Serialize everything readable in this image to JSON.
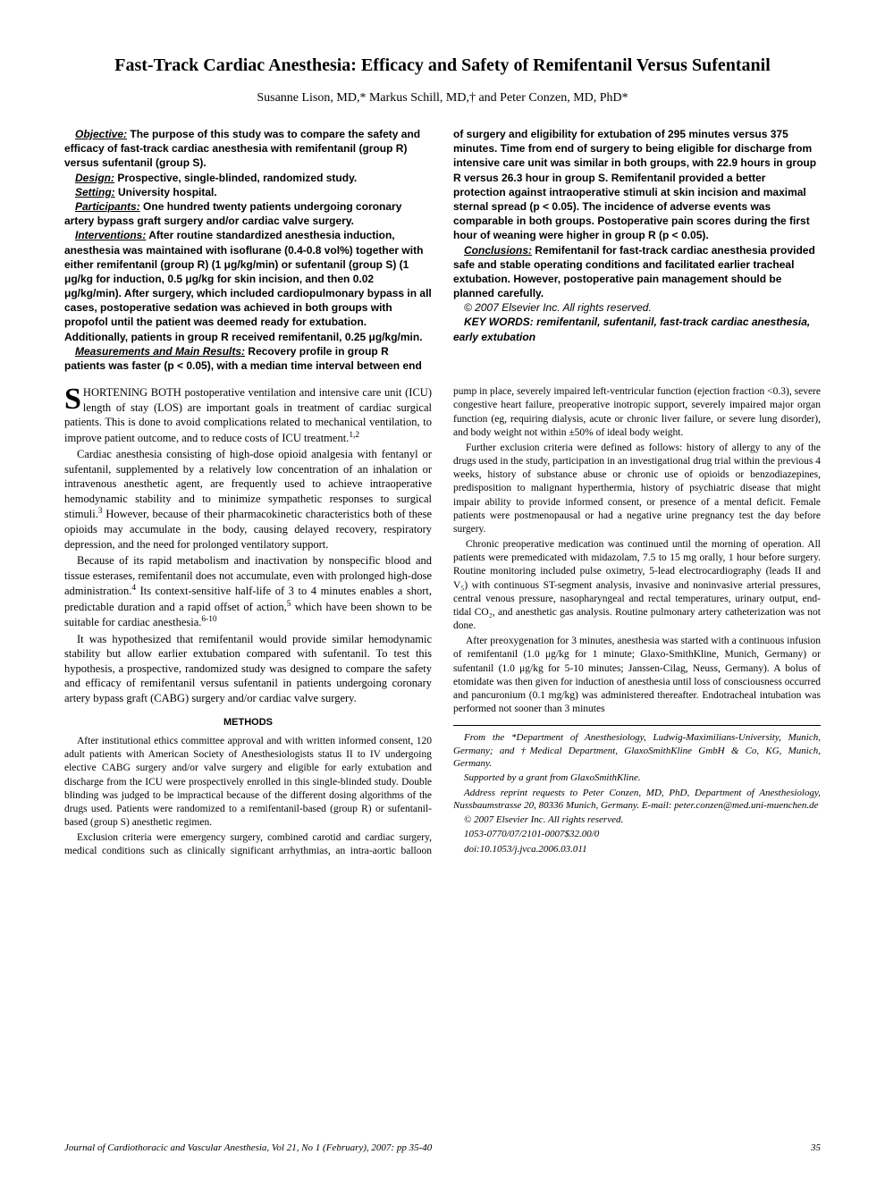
{
  "title": "Fast-Track Cardiac Anesthesia: Efficacy and Safety of Remifentanil Versus Sufentanil",
  "authors": "Susanne Lison, MD,* Markus Schill, MD,† and Peter Conzen, MD, PhD*",
  "abstract": {
    "objective_label": "Objective:",
    "objective": "The purpose of this study was to compare the safety and efficacy of fast-track cardiac anesthesia with remifentanil (group R) versus sufentanil (group S).",
    "design_label": "Design:",
    "design": "Prospective, single-blinded, randomized study.",
    "setting_label": "Setting:",
    "setting": "University hospital.",
    "participants_label": "Participants:",
    "participants": "One hundred twenty patients undergoing coronary artery bypass graft surgery and/or cardiac valve surgery.",
    "interventions_label": "Interventions:",
    "interventions": "After routine standardized anesthesia induction, anesthesia was maintained with isoflurane (0.4-0.8 vol%) together with either remifentanil (group R) (1 μg/kg/min) or sufentanil (group S) (1 μg/kg for induction, 0.5 μg/kg for skin incision, and then 0.02 μg/kg/min). After surgery, which included cardiopulmonary bypass in all cases, postoperative sedation was achieved in both groups with propofol until the patient was deemed ready for extubation. Additionally, patients in group R received remifentanil, 0.25 μg/kg/min.",
    "measurements_label": "Measurements and Main Results:",
    "measurements": "Recovery profile in group R patients was faster (p < 0.05), with a median time interval between end of surgery and eligibility for extubation of 295 minutes versus 375 minutes. Time from end of surgery to being eligible for discharge from intensive care unit was similar in both groups, with 22.9 hours in group R versus 26.3 hour in group S. Remifentanil provided a better protection against intraoperative stimuli at skin incision and maximal sternal spread (p < 0.05). The incidence of adverse events was comparable in both groups. Postoperative pain scores during the first hour of weaning were higher in group R (p < 0.05).",
    "conclusions_label": "Conclusions:",
    "conclusions": "Remifentanil for fast-track cardiac anesthesia provided safe and stable operating conditions and facilitated earlier tracheal extubation. However, postoperative pain management should be planned carefully.",
    "copyright": "© 2007 Elsevier Inc. All rights reserved.",
    "keywords": "KEY WORDS: remifentanil, sufentanil, fast-track cardiac anesthesia, early extubation"
  },
  "body": {
    "p1_dropcap": "S",
    "p1": "HORTENING BOTH postoperative ventilation and intensive care unit (ICU) length of stay (LOS) are important goals in treatment of cardiac surgical patients. This is done to avoid complications related to mechanical ventilation, to improve patient outcome, and to reduce costs of ICU treatment.",
    "p1_ref": "1,2",
    "p2": "Cardiac anesthesia consisting of high-dose opioid analgesia with fentanyl or sufentanil, supplemented by a relatively low concentration of an inhalation or intravenous anesthetic agent, are frequently used to achieve intraoperative hemodynamic stability and to minimize sympathetic responses to surgical stimuli.",
    "p2_ref": "3",
    "p2b": " However, because of their pharmacokinetic characteristics both of these opioids may accumulate in the body, causing delayed recovery, respiratory depression, and the need for prolonged ventilatory support.",
    "p3": "Because of its rapid metabolism and inactivation by nonspecific blood and tissue esterases, remifentanil does not accumulate, even with prolonged high-dose administration.",
    "p3_ref": "4",
    "p3b": " Its context-sensitive half-life of 3 to 4 minutes enables a short, predictable duration and a rapid offset of action,",
    "p3_ref2": "5",
    "p3c": " which have been shown to be suitable for cardiac anesthesia.",
    "p3_ref3": "6-10",
    "p4": "It was hypothesized that remifentanil would provide similar hemodynamic stability but allow earlier extubation compared with sufentanil. To test this hypothesis, a prospective, randomized study was designed to compare the safety and efficacy of remifentanil versus sufentanil in patients undergoing coronary artery bypass graft (CABG) surgery and/or cardiac valve surgery.",
    "methods_head": "METHODS",
    "m1": "After institutional ethics committee approval and with written informed consent, 120 adult patients with American Society of Anesthesiologists status II to IV undergoing elective CABG surgery and/or valve surgery and eligible for early extubation and discharge from the ICU were prospectively enrolled in this single-blinded study. Double blinding was judged to be impractical because of the different dosing algorithms of the drugs used. Patients were randomized to a remifentanil-based (group R) or sufentanil-based (group S) anesthetic regimen.",
    "m2": "Exclusion criteria were emergency surgery, combined carotid and cardiac surgery, medical conditions such as clinically significant arrhythmias, an intra-aortic balloon pump in place, severely impaired left-ventricular function (ejection fraction <0.3), severe congestive heart failure, preoperative inotropic support, severely impaired major organ function (eg, requiring dialysis, acute or chronic liver failure, or severe lung disorder), and body weight not within ±50% of ideal body weight.",
    "m3": "Further exclusion criteria were defined as follows: history of allergy to any of the drugs used in the study, participation in an investigational drug trial within the previous 4 weeks, history of substance abuse or chronic use of opioids or benzodiazepines, predisposition to malignant hyperthermia, history of psychiatric disease that might impair ability to provide informed consent, or presence of a mental deficit. Female patients were postmenopausal or had a negative urine pregnancy test the day before surgery.",
    "m4": "Chronic preoperative medication was continued until the morning of operation. All patients were premedicated with midazolam, 7.5 to 15 mg orally, 1 hour before surgery. Routine monitoring included pulse oximetry, 5-lead electrocardiography (leads II and V₅) with continuous ST-segment analysis, invasive and noninvasive arterial pressures, central venous pressure, nasopharyngeal and rectal temperatures, urinary output, end-tidal CO₂, and anesthetic gas analysis. Routine pulmonary artery catheterization was not done.",
    "m5": "After preoxygenation for 3 minutes, anesthesia was started with a continuous infusion of remifentanil (1.0 μg/kg for 1 minute; Glaxo-SmithKline, Munich, Germany) or sufentanil (1.0 μg/kg for 5-10 minutes; Janssen-Cilag, Neuss, Germany). A bolus of etomidate was then given for induction of anesthesia until loss of consciousness occurred and pancuronium (0.1 mg/kg) was administered thereafter. Endotracheal intubation was performed not sooner than 3 minutes"
  },
  "affil": {
    "from": "From the *Department of Anesthesiology, Ludwig-Maximilians-University, Munich, Germany; and †Medical Department, GlaxoSmithKline GmbH & Co, KG, Munich, Germany.",
    "support": "Supported by a grant from GlaxoSmithKline.",
    "reprint": "Address reprint requests to Peter Conzen, MD, PhD, Department of Anesthesiology, Nussbaumstrasse 20, 80336 Munich, Germany. E-mail: peter.conzen@med.uni-muenchen.de",
    "copyright": "© 2007 Elsevier Inc. All rights reserved.",
    "issn": "1053-0770/07/2101-0007$32.00/0",
    "doi": "doi:10.1053/j.jvca.2006.03.011"
  },
  "footer": {
    "journal": "Journal of Cardiothoracic and Vascular Anesthesia, Vol 21, No 1 (February), 2007: pp 35-40",
    "page": "35"
  },
  "colors": {
    "text": "#000000",
    "background": "#ffffff"
  },
  "fonts": {
    "body": "Times New Roman",
    "abstract": "Arial",
    "title_size": 20,
    "author_size": 14,
    "abstract_size": 12,
    "body_size": 12.5,
    "methods_size": 11.5,
    "affil_size": 11
  }
}
